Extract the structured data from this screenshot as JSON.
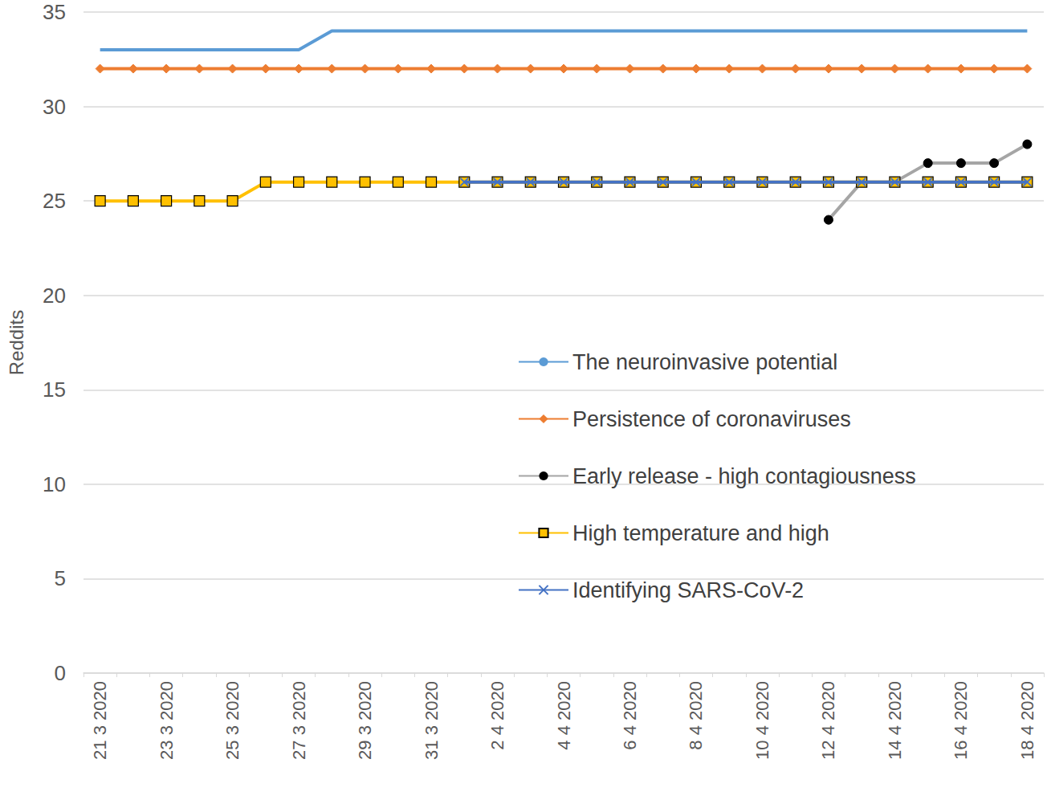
{
  "chart_data": {
    "type": "line",
    "y_label": "Reddits",
    "categories": [
      "21 3 2020",
      null,
      "23 3 2020",
      null,
      "25 3 2020",
      null,
      "27 3 2020",
      null,
      "29 3 2020",
      null,
      "31 3 2020",
      null,
      "2 4 2020",
      null,
      "4 4 2020",
      null,
      "6 4 2020",
      null,
      "8 4 2020",
      null,
      "10 4 2020",
      null,
      "12 4 2020",
      null,
      "14 4 2020",
      null,
      "16 4 2020",
      null,
      "18 4 2020"
    ],
    "series": [
      {
        "name": "The neuroinvasive potential",
        "color": "#5b9bd5",
        "marker": "none",
        "values": [
          33,
          33,
          33,
          33,
          33,
          33,
          33,
          34,
          34,
          34,
          34,
          34,
          34,
          34,
          34,
          34,
          34,
          34,
          34,
          34,
          34,
          34,
          34,
          34,
          34,
          34,
          34,
          34,
          34
        ]
      },
      {
        "name": "Persistence of coronaviruses",
        "color": "#ed7d31",
        "marker": "diamond",
        "values": [
          32,
          32,
          32,
          32,
          32,
          32,
          32,
          32,
          32,
          32,
          32,
          32,
          32,
          32,
          32,
          32,
          32,
          32,
          32,
          32,
          32,
          32,
          32,
          32,
          32,
          32,
          32,
          32,
          32
        ]
      },
      {
        "name": "Early release - high contagiousness",
        "color": "#a5a5a5",
        "marker": "circle",
        "values": [
          null,
          null,
          null,
          null,
          null,
          null,
          null,
          null,
          null,
          null,
          null,
          null,
          null,
          null,
          null,
          null,
          null,
          null,
          null,
          null,
          null,
          null,
          24,
          26,
          26,
          27,
          27,
          27,
          28
        ]
      },
      {
        "name": "High temperature and high",
        "color": "#ffc000",
        "marker": "square",
        "values": [
          25,
          25,
          25,
          25,
          25,
          26,
          26,
          26,
          26,
          26,
          26,
          26,
          26,
          26,
          26,
          26,
          26,
          26,
          26,
          26,
          26,
          26,
          26,
          26,
          26,
          26,
          26,
          26,
          26
        ]
      },
      {
        "name": "Identifying SARS-CoV-2",
        "color": "#4472c4",
        "marker": "x",
        "values": [
          null,
          null,
          null,
          null,
          null,
          null,
          null,
          null,
          null,
          null,
          null,
          26,
          26,
          26,
          26,
          26,
          26,
          26,
          26,
          26,
          26,
          26,
          26,
          26,
          26,
          26,
          26,
          26,
          26
        ]
      }
    ],
    "ylim": [
      0,
      35
    ],
    "yticks": [
      0,
      5,
      10,
      15,
      20,
      25,
      30,
      35
    ],
    "grid": true,
    "legend": "right"
  }
}
